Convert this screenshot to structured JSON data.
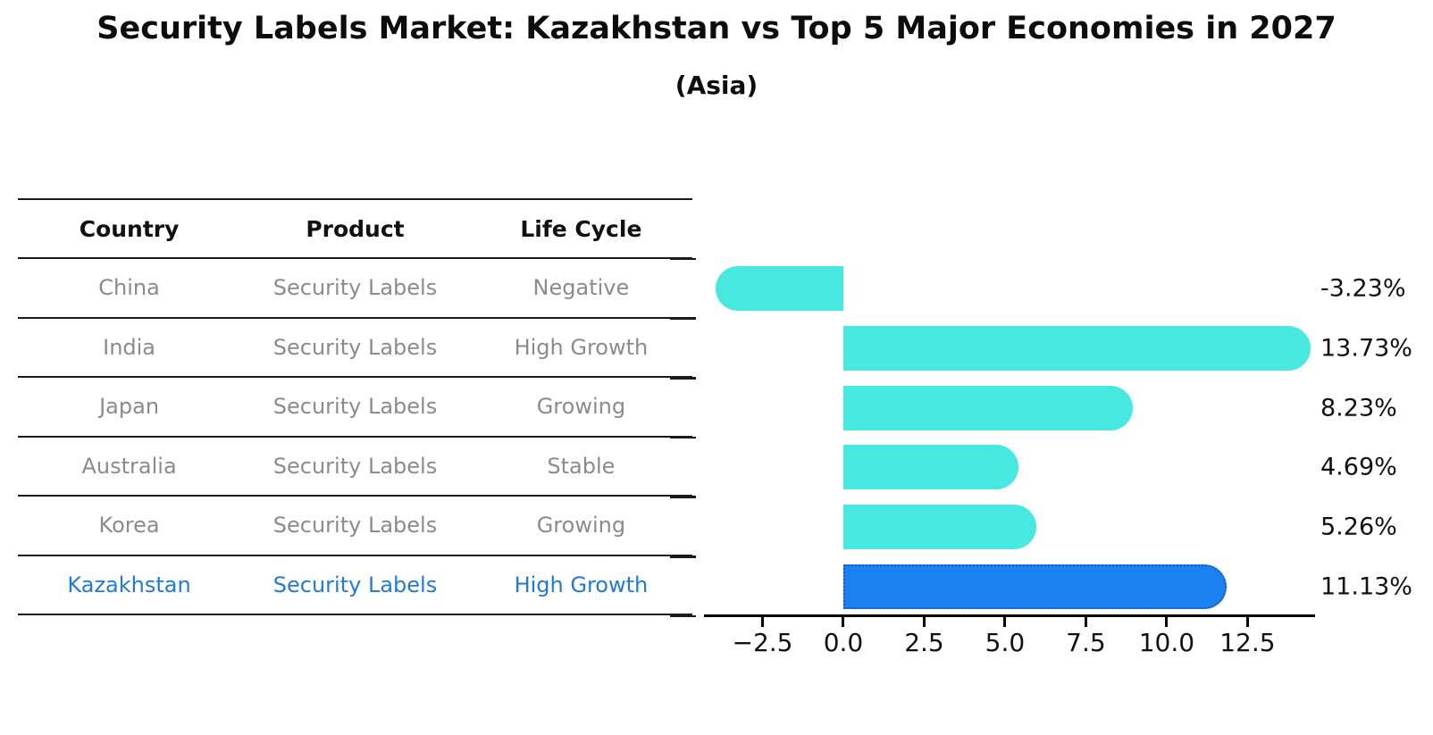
{
  "title": "Security Labels Market: Kazakhstan vs Top 5 Major Economies in 2027",
  "subtitle": "(Asia)",
  "colors": {
    "bar": "#46E8E0",
    "highlight_bar": "#1B80F0",
    "highlight_border": "#1558C0",
    "highlight_text": "#1F7AD8",
    "row_text": "#8B8B8B",
    "header_text": "#111111",
    "axis": "#000000"
  },
  "table": {
    "headers": [
      "Country",
      "Product",
      "Life Cycle"
    ],
    "rows": [
      {
        "country": "China",
        "product": "Security Labels",
        "life_cycle": "Negative",
        "highlight": false
      },
      {
        "country": "India",
        "product": "Security Labels",
        "life_cycle": "High Growth",
        "highlight": false
      },
      {
        "country": "Japan",
        "product": "Security Labels",
        "life_cycle": "Growing",
        "highlight": false
      },
      {
        "country": "Australia",
        "product": "Security Labels",
        "life_cycle": "Stable",
        "highlight": false
      },
      {
        "country": "Korea",
        "product": "Security Labels",
        "life_cycle": "Growing",
        "highlight": false
      },
      {
        "country": "Kazakhstan",
        "product": "Security Labels",
        "life_cycle": "High Growth",
        "highlight": true
      }
    ]
  },
  "chart_data": {
    "type": "bar",
    "orientation": "horizontal",
    "title": "Security Labels Market: Kazakhstan vs Top 5 Major Economies in 2027",
    "subtitle": "(Asia)",
    "categories": [
      "China",
      "India",
      "Japan",
      "Australia",
      "Korea",
      "Kazakhstan"
    ],
    "values": [
      -3.23,
      13.73,
      8.23,
      4.69,
      5.26,
      11.13
    ],
    "value_labels": [
      "-3.23%",
      "13.73%",
      "8.23%",
      "4.69%",
      "5.26%",
      "11.13%"
    ],
    "highlight_index": 5,
    "x_ticks": [
      {
        "value": -2.5,
        "label": "−2.5"
      },
      {
        "value": 0,
        "label": "0.0"
      },
      {
        "value": 2.5,
        "label": "2.5"
      },
      {
        "value": 5,
        "label": "5.0"
      },
      {
        "value": 7.5,
        "label": "7.5"
      },
      {
        "value": 10,
        "label": "10.0"
      },
      {
        "value": 12.5,
        "label": "12.5"
      }
    ],
    "xlim": [
      -4.31,
      14.59
    ],
    "xlabel": "",
    "ylabel": "",
    "grid": false,
    "legend": false
  }
}
